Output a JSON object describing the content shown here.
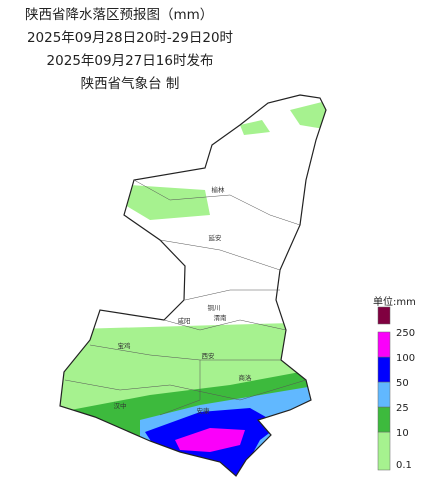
{
  "header": {
    "title": "陕西省降水落区预报图（mm）",
    "period": "2025年09月28日20时-29日20时",
    "issued": "2025年09月27日16时发布",
    "issuer": "陕西省气象台 制"
  },
  "cities": [
    {
      "label": "榆林"
    },
    {
      "label": "延安"
    },
    {
      "label": "铜川"
    },
    {
      "label": "咸阳"
    },
    {
      "label": "渭南"
    },
    {
      "label": "宝鸡"
    },
    {
      "label": "西安"
    },
    {
      "label": "商洛"
    },
    {
      "label": "汉中"
    },
    {
      "label": "安康"
    }
  ],
  "legend": {
    "unit": "单位:mm",
    "levels": [
      0.1,
      10,
      25,
      50,
      100,
      250
    ],
    "colors": [
      "#a6f28f",
      "#3dba3d",
      "#61b8ff",
      "#0000fe",
      "#fa00fa",
      "#800040"
    ]
  }
}
